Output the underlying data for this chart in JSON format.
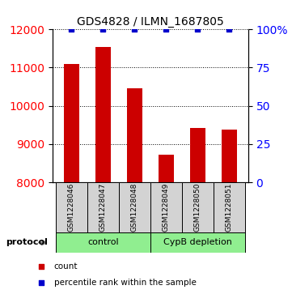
{
  "title": "GDS4828 / ILMN_1687805",
  "samples": [
    "GSM1228046",
    "GSM1228047",
    "GSM1228048",
    "GSM1228049",
    "GSM1228050",
    "GSM1228051"
  ],
  "counts": [
    11100,
    11550,
    10450,
    8720,
    9430,
    9380
  ],
  "percentile_ranks": [
    100,
    100,
    100,
    100,
    100,
    100
  ],
  "groups": [
    {
      "name": "control",
      "indices": [
        0,
        1,
        2
      ],
      "color": "#90EE90"
    },
    {
      "name": "CypB depletion",
      "indices": [
        3,
        4,
        5
      ],
      "color": "#90EE90"
    }
  ],
  "ylim_left": [
    8000,
    12000
  ],
  "ylim_right": [
    0,
    100
  ],
  "yticks_left": [
    8000,
    9000,
    10000,
    11000,
    12000
  ],
  "yticks_right": [
    0,
    25,
    50,
    75,
    100
  ],
  "bar_color": "#cc0000",
  "dot_color": "#0000cc",
  "background_color": "#ffffff",
  "sample_box_color": "#d3d3d3",
  "protocol_label": "protocol",
  "legend_count_label": "count",
  "legend_percentile_label": "percentile rank within the sample"
}
